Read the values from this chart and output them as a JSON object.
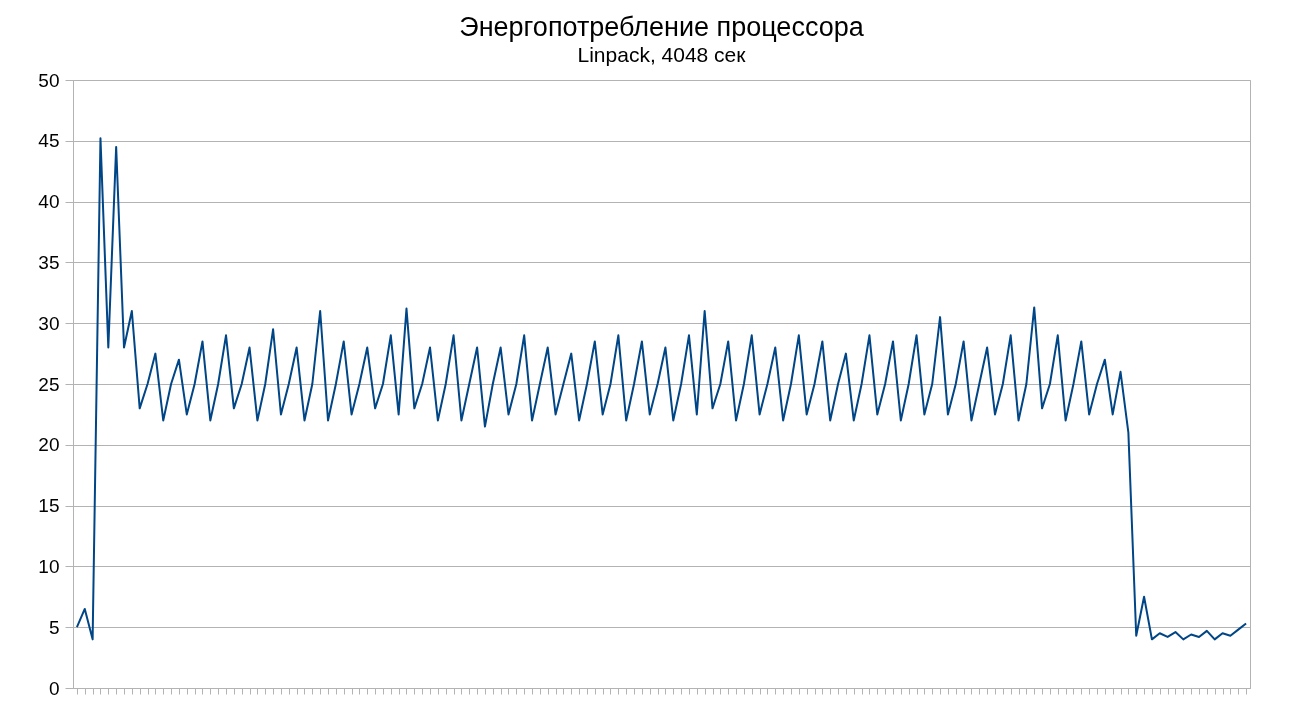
{
  "chart_data": {
    "type": "line",
    "title": "Энергопотребление процессора",
    "subtitle": "Linpack, 4048 сек",
    "categories": [
      null,
      null,
      null,
      null,
      null,
      null,
      null,
      null,
      null,
      null,
      null,
      null,
      null,
      null,
      null,
      null,
      null,
      null,
      null,
      null,
      null,
      null,
      null,
      null,
      null,
      null,
      null,
      null,
      null,
      null,
      null,
      null,
      null,
      null,
      null,
      null,
      null,
      null,
      null,
      null,
      null,
      null,
      null,
      null,
      null,
      null,
      null,
      null,
      null,
      null,
      null,
      null,
      null,
      null,
      null,
      null,
      null,
      null,
      null,
      null,
      null,
      null,
      null,
      null,
      null,
      null,
      null,
      null,
      null,
      null,
      null,
      null,
      null,
      null,
      null,
      null,
      null,
      null,
      null,
      null,
      null,
      null,
      null,
      null,
      null,
      null,
      null,
      null,
      null,
      null,
      null,
      null,
      null,
      null,
      null,
      null,
      null,
      null,
      null,
      null,
      null,
      null,
      null,
      null,
      null,
      null,
      null,
      null,
      null,
      null,
      null,
      null,
      null,
      null,
      null,
      null,
      null,
      null,
      null,
      null,
      null,
      null,
      null,
      null,
      null,
      null,
      null,
      null,
      null,
      null,
      null,
      null,
      null,
      null,
      null,
      null,
      null,
      null,
      null,
      null,
      null,
      null,
      null,
      null,
      null,
      null,
      null,
      null,
      null,
      null
    ],
    "series": [
      {
        "color": "#004586",
        "values": [
          5,
          6.5,
          4,
          45.2,
          28,
          44.5,
          28,
          31,
          23,
          25,
          27.5,
          22,
          25,
          27,
          22.5,
          25,
          28.5,
          22,
          25,
          29,
          23,
          25,
          28,
          22,
          25,
          29.5,
          22.5,
          25,
          28,
          22,
          25,
          31,
          22,
          25,
          28.5,
          22.5,
          25,
          28,
          23,
          25,
          29,
          22.5,
          31.2,
          23,
          25,
          28,
          22,
          25,
          29,
          22,
          25,
          28,
          21.5,
          25,
          28,
          22.5,
          25,
          29,
          22,
          25,
          28,
          22.5,
          25,
          27.5,
          22,
          25,
          28.5,
          22.5,
          25,
          29,
          22,
          25,
          28.5,
          22.5,
          25,
          28,
          22,
          25,
          29,
          22.5,
          31,
          23,
          25,
          28.5,
          22,
          25,
          29,
          22.5,
          25,
          28,
          22,
          25,
          29,
          22.5,
          25,
          28.5,
          22,
          25,
          27.5,
          22,
          25,
          29,
          22.5,
          25,
          28.5,
          22,
          25,
          29,
          22.5,
          25,
          30.5,
          22.5,
          25,
          28.5,
          22,
          25,
          28,
          22.5,
          25,
          29,
          22,
          25,
          31.3,
          23,
          25,
          29,
          22,
          25,
          28.5,
          22.5,
          25,
          27,
          22.5,
          26,
          21,
          4.3,
          7.5,
          4,
          4.5,
          4.2,
          4.6,
          4,
          4.4,
          4.2,
          4.7,
          4,
          4.5,
          4.3,
          4.8,
          5.3
        ]
      }
    ],
    "ylim": [
      0,
      50
    ],
    "yticks": [
      0,
      5,
      10,
      15,
      20,
      25,
      30,
      35,
      40,
      45,
      50
    ],
    "grid": "y",
    "tick_labels": "y",
    "legend": false,
    "marker": "none",
    "line_style": "solid"
  }
}
